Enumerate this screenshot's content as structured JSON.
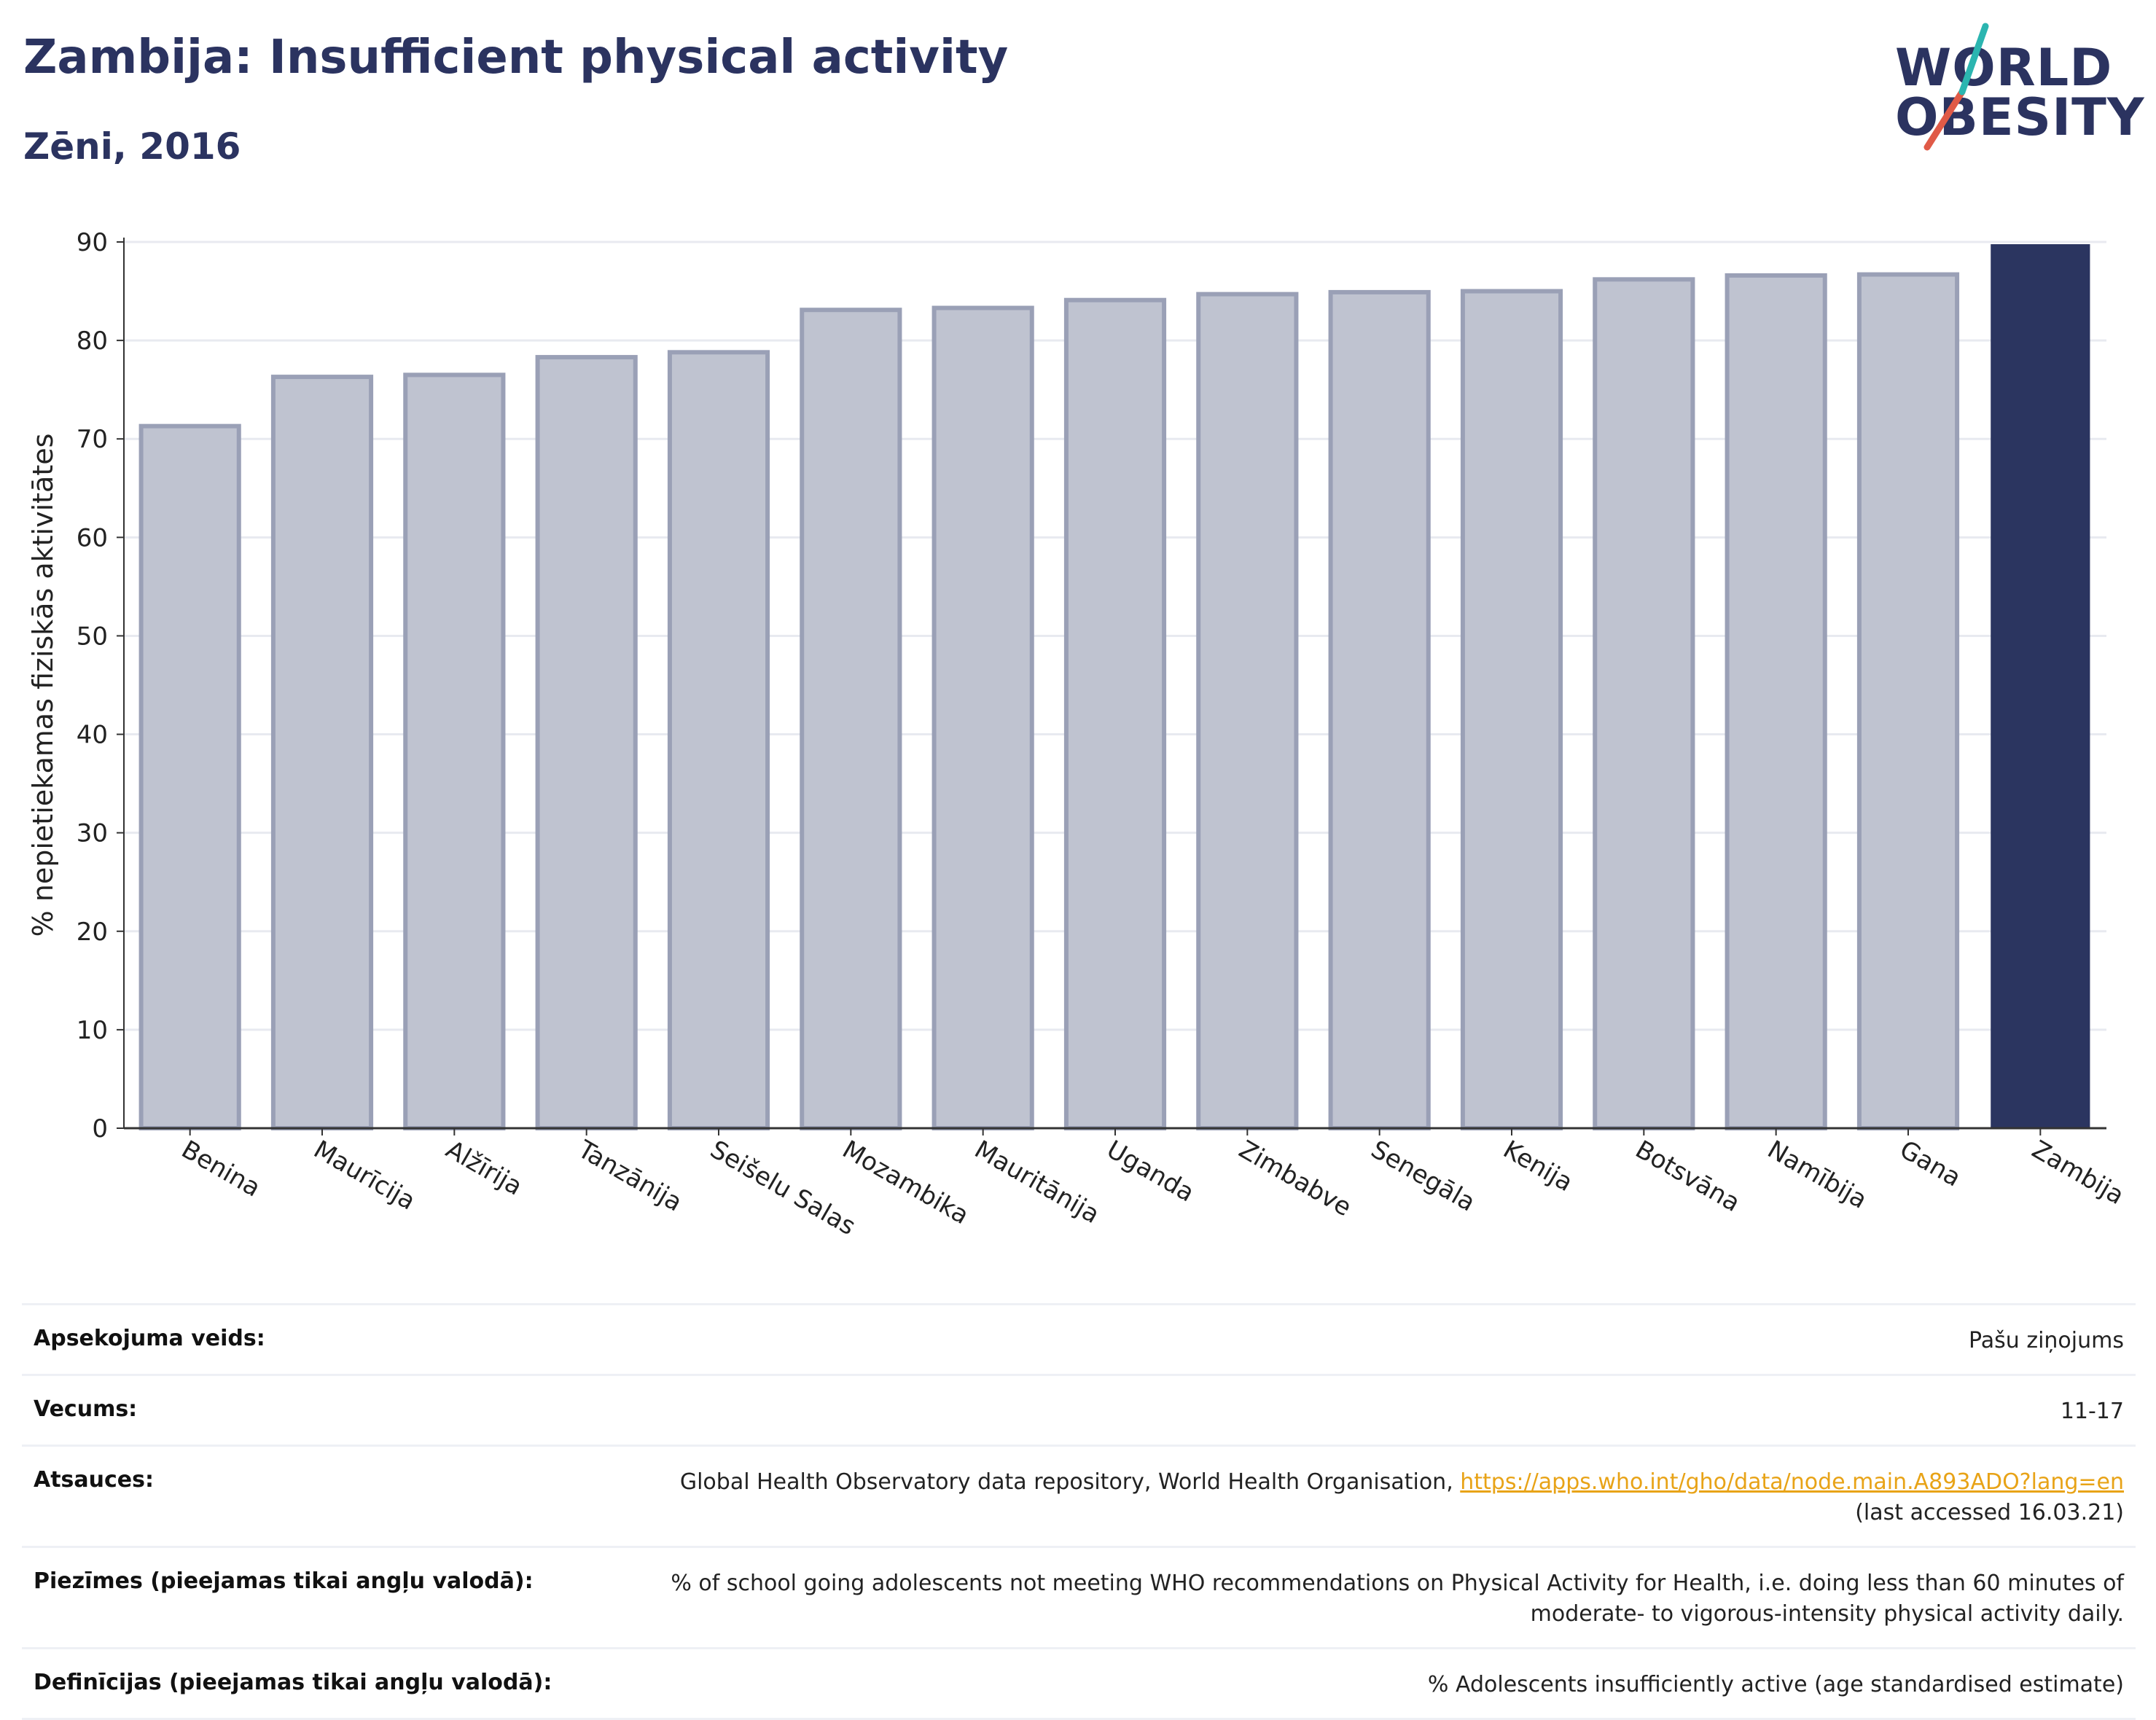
{
  "header": {
    "title": "Zambija: Insufficient physical activity",
    "subtitle": "Zēni, 2016"
  },
  "logo": {
    "line1": "WORLD",
    "line2": "OBESITY",
    "text_color": "#2b3360",
    "slash_colors": [
      "#e05a47",
      "#2bb5b0"
    ]
  },
  "chart_data": {
    "type": "bar",
    "categories": [
      "Benina",
      "Maurīcija",
      "Alžīrija",
      "Tanzānija",
      "Seišelu Salas",
      "Mozambika",
      "Mauritānija",
      "Uganda",
      "Zimbabve",
      "Senegāla",
      "Kenija",
      "Botsvāna",
      "Namībija",
      "Gana",
      "Zambija"
    ],
    "values": [
      71.3,
      76.3,
      76.5,
      78.3,
      78.8,
      83.1,
      83.3,
      84.1,
      84.7,
      84.9,
      85.0,
      86.2,
      86.6,
      86.7,
      89.7
    ],
    "highlight": "Zambija",
    "ylabel": "% nepietiekamas fiziskās aktivitātes",
    "xlabel": "",
    "ylim": [
      0,
      90
    ],
    "yticks": [
      0,
      10,
      20,
      30,
      40,
      50,
      60,
      70,
      80,
      90
    ],
    "grid": true,
    "colors": {
      "bar": "#bfc3d0",
      "bar_edge": "#9aa0b6",
      "highlight": "#2b3560",
      "grid": "#e8eaf0",
      "axis": "#333333"
    }
  },
  "meta": {
    "rows": [
      {
        "label": "Apsekojuma veids:",
        "value": "Pašu ziņojums"
      },
      {
        "label": "Vecums:",
        "value": "11-17"
      },
      {
        "label": "Atsauces:",
        "value": "Global Health Observatory data repository, World Health Organisation, ",
        "link": "https://apps.who.int/gho/data/node.main.A893ADO?lang=en",
        "value2": "(last accessed 16.03.21)"
      },
      {
        "label": "Piezīmes (pieejamas tikai angļu valodā):",
        "value": "% of school going adolescents not meeting WHO recommendations on Physical Activity for Health, i.e. doing less than 60 minutes of moderate- to vigorous-intensity physical activity daily."
      },
      {
        "label": "Definīcijas (pieejamas tikai angļu valodā):",
        "value": "% Adolescents insufficiently active (age standardised estimate)"
      }
    ]
  }
}
